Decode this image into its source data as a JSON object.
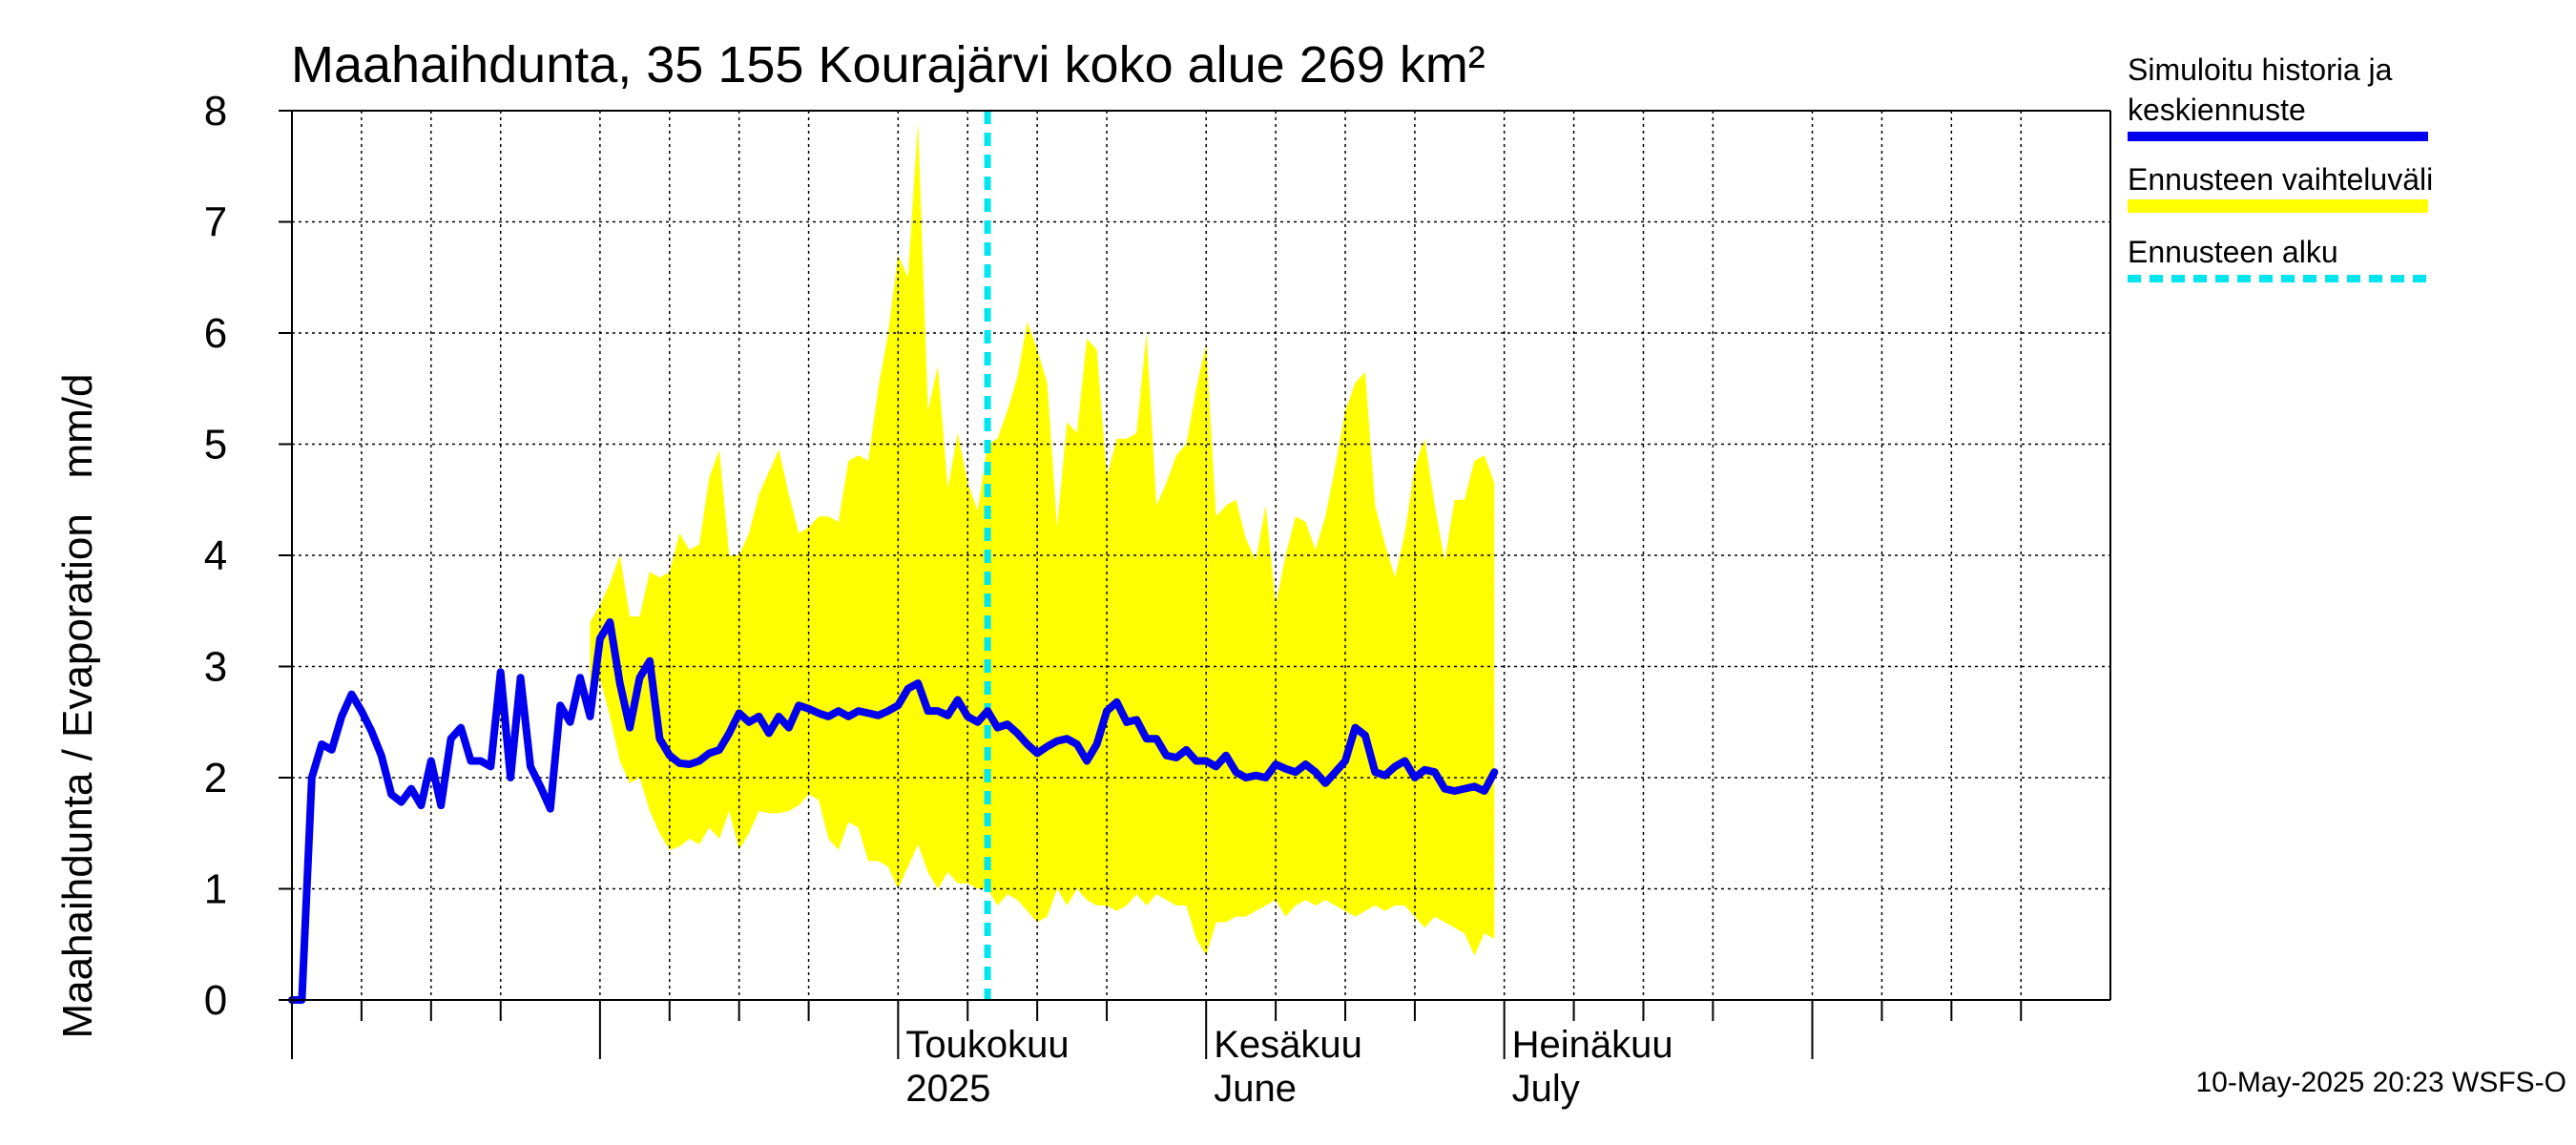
{
  "chart_data": {
    "type": "area",
    "title": "Maahaihdunta, 35 155 Kourajärvi koko alue 269 km²",
    "ylabel": "Maahaihdunta / Evaporation   mm/d",
    "ylim": [
      0,
      8
    ],
    "yticks": [
      "0",
      "1",
      "2",
      "3",
      "4",
      "5",
      "6",
      "7",
      "8"
    ],
    "x_start": "2025-03-01",
    "x_end": "2025-08-31",
    "forecast_start": "2025-05-10",
    "month_labels": [
      {
        "date": "2025-05-01",
        "line1": "Toukokuu",
        "line2": "2025"
      },
      {
        "date": "2025-06-01",
        "line1": "Kesäkuu",
        "line2": "June"
      },
      {
        "date": "2025-07-01",
        "line1": "Heinäkuu",
        "line2": "July"
      }
    ],
    "legend": [
      {
        "label_lines": [
          "Simuloitu historia ja",
          "keskiennuste"
        ],
        "color": "#0000ee",
        "style": "solid"
      },
      {
        "label_lines": [
          "Ennusteen vaihteluväli"
        ],
        "color": "#ffff00",
        "style": "band"
      },
      {
        "label_lines": [
          "Ennusteen alku"
        ],
        "color": "#00e5ee",
        "style": "dashed"
      }
    ],
    "colors": {
      "series": "#0000ee",
      "band": "#ffff00",
      "forecast_line": "#00e5ee",
      "grid": "#000000"
    },
    "series": [
      {
        "name": "Simuloitu historia ja keskiennuste",
        "points": [
          [
            "2025-03-01",
            0.0
          ],
          [
            "2025-03-02",
            0.0
          ],
          [
            "2025-03-03",
            2.0
          ],
          [
            "2025-03-04",
            2.3
          ],
          [
            "2025-03-05",
            2.25
          ],
          [
            "2025-03-06",
            2.55
          ],
          [
            "2025-03-07",
            2.75
          ],
          [
            "2025-03-08",
            2.6
          ],
          [
            "2025-03-09",
            2.42
          ],
          [
            "2025-03-10",
            2.2
          ],
          [
            "2025-03-11",
            1.85
          ],
          [
            "2025-03-12",
            1.78
          ],
          [
            "2025-03-13",
            1.9
          ],
          [
            "2025-03-14",
            1.75
          ],
          [
            "2025-03-15",
            2.15
          ],
          [
            "2025-03-16",
            1.75
          ],
          [
            "2025-03-17",
            2.35
          ],
          [
            "2025-03-18",
            2.45
          ],
          [
            "2025-03-19",
            2.15
          ],
          [
            "2025-03-20",
            2.15
          ],
          [
            "2025-03-21",
            2.1
          ],
          [
            "2025-03-22",
            2.95
          ],
          [
            "2025-03-23",
            2.0
          ],
          [
            "2025-03-24",
            2.9
          ],
          [
            "2025-03-25",
            2.1
          ],
          [
            "2025-03-26",
            1.92
          ],
          [
            "2025-03-27",
            1.72
          ],
          [
            "2025-03-28",
            2.65
          ],
          [
            "2025-03-29",
            2.5
          ],
          [
            "2025-03-30",
            2.9
          ],
          [
            "2025-03-31",
            2.55
          ],
          [
            "2025-04-01",
            3.25
          ],
          [
            "2025-04-02",
            3.4
          ],
          [
            "2025-04-03",
            2.85
          ],
          [
            "2025-04-04",
            2.45
          ],
          [
            "2025-04-05",
            2.9
          ],
          [
            "2025-04-06",
            3.05
          ],
          [
            "2025-04-07",
            2.35
          ],
          [
            "2025-04-08",
            2.2
          ],
          [
            "2025-04-09",
            2.13
          ],
          [
            "2025-04-10",
            2.12
          ],
          [
            "2025-04-11",
            2.15
          ],
          [
            "2025-04-12",
            2.22
          ],
          [
            "2025-04-13",
            2.25
          ],
          [
            "2025-04-14",
            2.4
          ],
          [
            "2025-04-15",
            2.58
          ],
          [
            "2025-04-16",
            2.5
          ],
          [
            "2025-04-17",
            2.55
          ],
          [
            "2025-04-18",
            2.4
          ],
          [
            "2025-04-19",
            2.55
          ],
          [
            "2025-04-20",
            2.45
          ],
          [
            "2025-04-21",
            2.65
          ],
          [
            "2025-04-22",
            2.62
          ],
          [
            "2025-04-23",
            2.58
          ],
          [
            "2025-04-24",
            2.55
          ],
          [
            "2025-04-25",
            2.6
          ],
          [
            "2025-04-26",
            2.55
          ],
          [
            "2025-04-27",
            2.6
          ],
          [
            "2025-04-28",
            2.58
          ],
          [
            "2025-04-29",
            2.56
          ],
          [
            "2025-04-30",
            2.6
          ],
          [
            "2025-05-01",
            2.65
          ],
          [
            "2025-05-02",
            2.8
          ],
          [
            "2025-05-03",
            2.85
          ],
          [
            "2025-05-04",
            2.6
          ],
          [
            "2025-05-05",
            2.6
          ],
          [
            "2025-05-06",
            2.56
          ],
          [
            "2025-05-07",
            2.7
          ],
          [
            "2025-05-08",
            2.55
          ],
          [
            "2025-05-09",
            2.5
          ],
          [
            "2025-05-10",
            2.6
          ],
          [
            "2025-05-11",
            2.45
          ],
          [
            "2025-05-12",
            2.48
          ],
          [
            "2025-05-13",
            2.4
          ],
          [
            "2025-05-14",
            2.3
          ],
          [
            "2025-05-15",
            2.22
          ],
          [
            "2025-05-16",
            2.28
          ],
          [
            "2025-05-17",
            2.33
          ],
          [
            "2025-05-18",
            2.35
          ],
          [
            "2025-05-19",
            2.3
          ],
          [
            "2025-05-20",
            2.15
          ],
          [
            "2025-05-21",
            2.3
          ],
          [
            "2025-05-22",
            2.6
          ],
          [
            "2025-05-23",
            2.68
          ],
          [
            "2025-05-24",
            2.5
          ],
          [
            "2025-05-25",
            2.52
          ],
          [
            "2025-05-26",
            2.35
          ],
          [
            "2025-05-27",
            2.35
          ],
          [
            "2025-05-28",
            2.2
          ],
          [
            "2025-05-29",
            2.18
          ],
          [
            "2025-05-30",
            2.25
          ],
          [
            "2025-05-31",
            2.15
          ],
          [
            "2025-06-01",
            2.15
          ],
          [
            "2025-06-02",
            2.1
          ],
          [
            "2025-06-03",
            2.2
          ],
          [
            "2025-06-04",
            2.05
          ],
          [
            "2025-06-05",
            2.0
          ],
          [
            "2025-06-06",
            2.02
          ],
          [
            "2025-06-07",
            2.0
          ],
          [
            "2025-06-08",
            2.12
          ],
          [
            "2025-06-09",
            2.08
          ],
          [
            "2025-06-10",
            2.05
          ],
          [
            "2025-06-11",
            2.12
          ],
          [
            "2025-06-12",
            2.05
          ],
          [
            "2025-06-13",
            1.95
          ],
          [
            "2025-06-14",
            2.05
          ],
          [
            "2025-06-15",
            2.15
          ],
          [
            "2025-06-16",
            2.45
          ],
          [
            "2025-06-17",
            2.38
          ],
          [
            "2025-06-18",
            2.05
          ],
          [
            "2025-06-19",
            2.02
          ],
          [
            "2025-06-20",
            2.1
          ],
          [
            "2025-06-21",
            2.15
          ],
          [
            "2025-06-22",
            2.0
          ],
          [
            "2025-06-23",
            2.07
          ],
          [
            "2025-06-24",
            2.05
          ],
          [
            "2025-06-25",
            1.9
          ],
          [
            "2025-06-26",
            1.88
          ],
          [
            "2025-06-27",
            1.9
          ],
          [
            "2025-06-28",
            1.92
          ],
          [
            "2025-06-29",
            1.88
          ],
          [
            "2025-06-30",
            2.05
          ]
        ]
      }
    ],
    "band": [
      [
        "2025-03-31",
        2.55,
        3.4
      ],
      [
        "2025-04-01",
        2.9,
        3.55
      ],
      [
        "2025-04-02",
        2.55,
        3.75
      ],
      [
        "2025-04-03",
        2.15,
        4.0
      ],
      [
        "2025-04-04",
        1.95,
        3.45
      ],
      [
        "2025-04-05",
        2.0,
        3.45
      ],
      [
        "2025-04-06",
        1.7,
        3.85
      ],
      [
        "2025-04-07",
        1.5,
        3.8
      ],
      [
        "2025-04-08",
        1.35,
        3.85
      ],
      [
        "2025-04-09",
        1.38,
        4.2
      ],
      [
        "2025-04-10",
        1.45,
        4.05
      ],
      [
        "2025-04-11",
        1.4,
        4.1
      ],
      [
        "2025-04-12",
        1.55,
        4.7
      ],
      [
        "2025-04-13",
        1.45,
        4.95
      ],
      [
        "2025-04-14",
        1.7,
        4.0
      ],
      [
        "2025-04-15",
        1.35,
        4.0
      ],
      [
        "2025-04-16",
        1.5,
        4.2
      ],
      [
        "2025-04-17",
        1.7,
        4.55
      ],
      [
        "2025-04-18",
        1.68,
        4.75
      ],
      [
        "2025-04-19",
        1.68,
        4.95
      ],
      [
        "2025-04-20",
        1.7,
        4.55
      ],
      [
        "2025-04-21",
        1.75,
        4.2
      ],
      [
        "2025-04-22",
        1.85,
        4.25
      ],
      [
        "2025-04-23",
        1.8,
        4.35
      ],
      [
        "2025-04-24",
        1.45,
        4.35
      ],
      [
        "2025-04-25",
        1.35,
        4.3
      ],
      [
        "2025-04-26",
        1.6,
        4.85
      ],
      [
        "2025-04-27",
        1.55,
        4.9
      ],
      [
        "2025-04-28",
        1.25,
        4.85
      ],
      [
        "2025-04-29",
        1.25,
        5.5
      ],
      [
        "2025-04-30",
        1.2,
        6.0
      ],
      [
        "2025-05-01",
        1.0,
        6.7
      ],
      [
        "2025-05-02",
        1.2,
        6.5
      ],
      [
        "2025-05-03",
        1.4,
        7.9
      ],
      [
        "2025-05-04",
        1.15,
        5.3
      ],
      [
        "2025-05-05",
        1.0,
        5.7
      ],
      [
        "2025-05-06",
        1.15,
        4.6
      ],
      [
        "2025-05-07",
        1.05,
        5.1
      ],
      [
        "2025-05-08",
        1.05,
        4.65
      ],
      [
        "2025-05-09",
        1.0,
        4.4
      ],
      [
        "2025-05-10",
        1.0,
        5.0
      ],
      [
        "2025-05-11",
        0.85,
        5.05
      ],
      [
        "2025-05-12",
        0.95,
        5.3
      ],
      [
        "2025-05-13",
        0.9,
        5.6
      ],
      [
        "2025-05-14",
        0.8,
        6.1
      ],
      [
        "2025-05-15",
        0.7,
        5.85
      ],
      [
        "2025-05-16",
        0.75,
        5.55
      ],
      [
        "2025-05-17",
        1.0,
        4.25
      ],
      [
        "2025-05-18",
        0.85,
        5.2
      ],
      [
        "2025-05-19",
        1.0,
        5.1
      ],
      [
        "2025-05-20",
        0.9,
        5.95
      ],
      [
        "2025-05-21",
        0.85,
        5.85
      ],
      [
        "2025-05-22",
        0.85,
        4.7
      ],
      [
        "2025-05-23",
        0.8,
        5.05
      ],
      [
        "2025-05-24",
        0.85,
        5.05
      ],
      [
        "2025-05-25",
        0.95,
        5.1
      ],
      [
        "2025-05-26",
        0.85,
        6.0
      ],
      [
        "2025-05-27",
        0.95,
        4.45
      ],
      [
        "2025-05-28",
        0.9,
        4.65
      ],
      [
        "2025-05-29",
        0.85,
        4.9
      ],
      [
        "2025-05-30",
        0.85,
        5.0
      ],
      [
        "2025-05-31",
        0.55,
        5.5
      ],
      [
        "2025-06-01",
        0.4,
        5.9
      ],
      [
        "2025-06-02",
        0.7,
        4.35
      ],
      [
        "2025-06-03",
        0.7,
        4.45
      ],
      [
        "2025-06-04",
        0.75,
        4.5
      ],
      [
        "2025-06-05",
        0.75,
        4.15
      ],
      [
        "2025-06-06",
        0.8,
        3.95
      ],
      [
        "2025-06-07",
        0.85,
        4.45
      ],
      [
        "2025-06-08",
        0.9,
        3.55
      ],
      [
        "2025-06-09",
        0.75,
        4.0
      ],
      [
        "2025-06-10",
        0.85,
        4.35
      ],
      [
        "2025-06-11",
        0.9,
        4.3
      ],
      [
        "2025-06-12",
        0.85,
        4.05
      ],
      [
        "2025-06-13",
        0.9,
        4.35
      ],
      [
        "2025-06-14",
        0.85,
        4.8
      ],
      [
        "2025-06-15",
        0.8,
        5.3
      ],
      [
        "2025-06-16",
        0.75,
        5.55
      ],
      [
        "2025-06-17",
        0.8,
        5.65
      ],
      [
        "2025-06-18",
        0.85,
        4.45
      ],
      [
        "2025-06-19",
        0.8,
        4.1
      ],
      [
        "2025-06-20",
        0.85,
        3.8
      ],
      [
        "2025-06-21",
        0.85,
        4.2
      ],
      [
        "2025-06-22",
        0.75,
        4.8
      ],
      [
        "2025-06-23",
        0.65,
        5.05
      ],
      [
        "2025-06-24",
        0.75,
        4.45
      ],
      [
        "2025-06-25",
        0.7,
        3.95
      ],
      [
        "2025-06-26",
        0.65,
        4.5
      ],
      [
        "2025-06-27",
        0.6,
        4.5
      ],
      [
        "2025-06-28",
        0.4,
        4.85
      ],
      [
        "2025-06-29",
        0.6,
        4.9
      ],
      [
        "2025-06-30",
        0.55,
        4.65
      ]
    ],
    "grid": true,
    "legend_position": "right"
  },
  "footer": "10-May-2025 20:23 WSFS-O"
}
